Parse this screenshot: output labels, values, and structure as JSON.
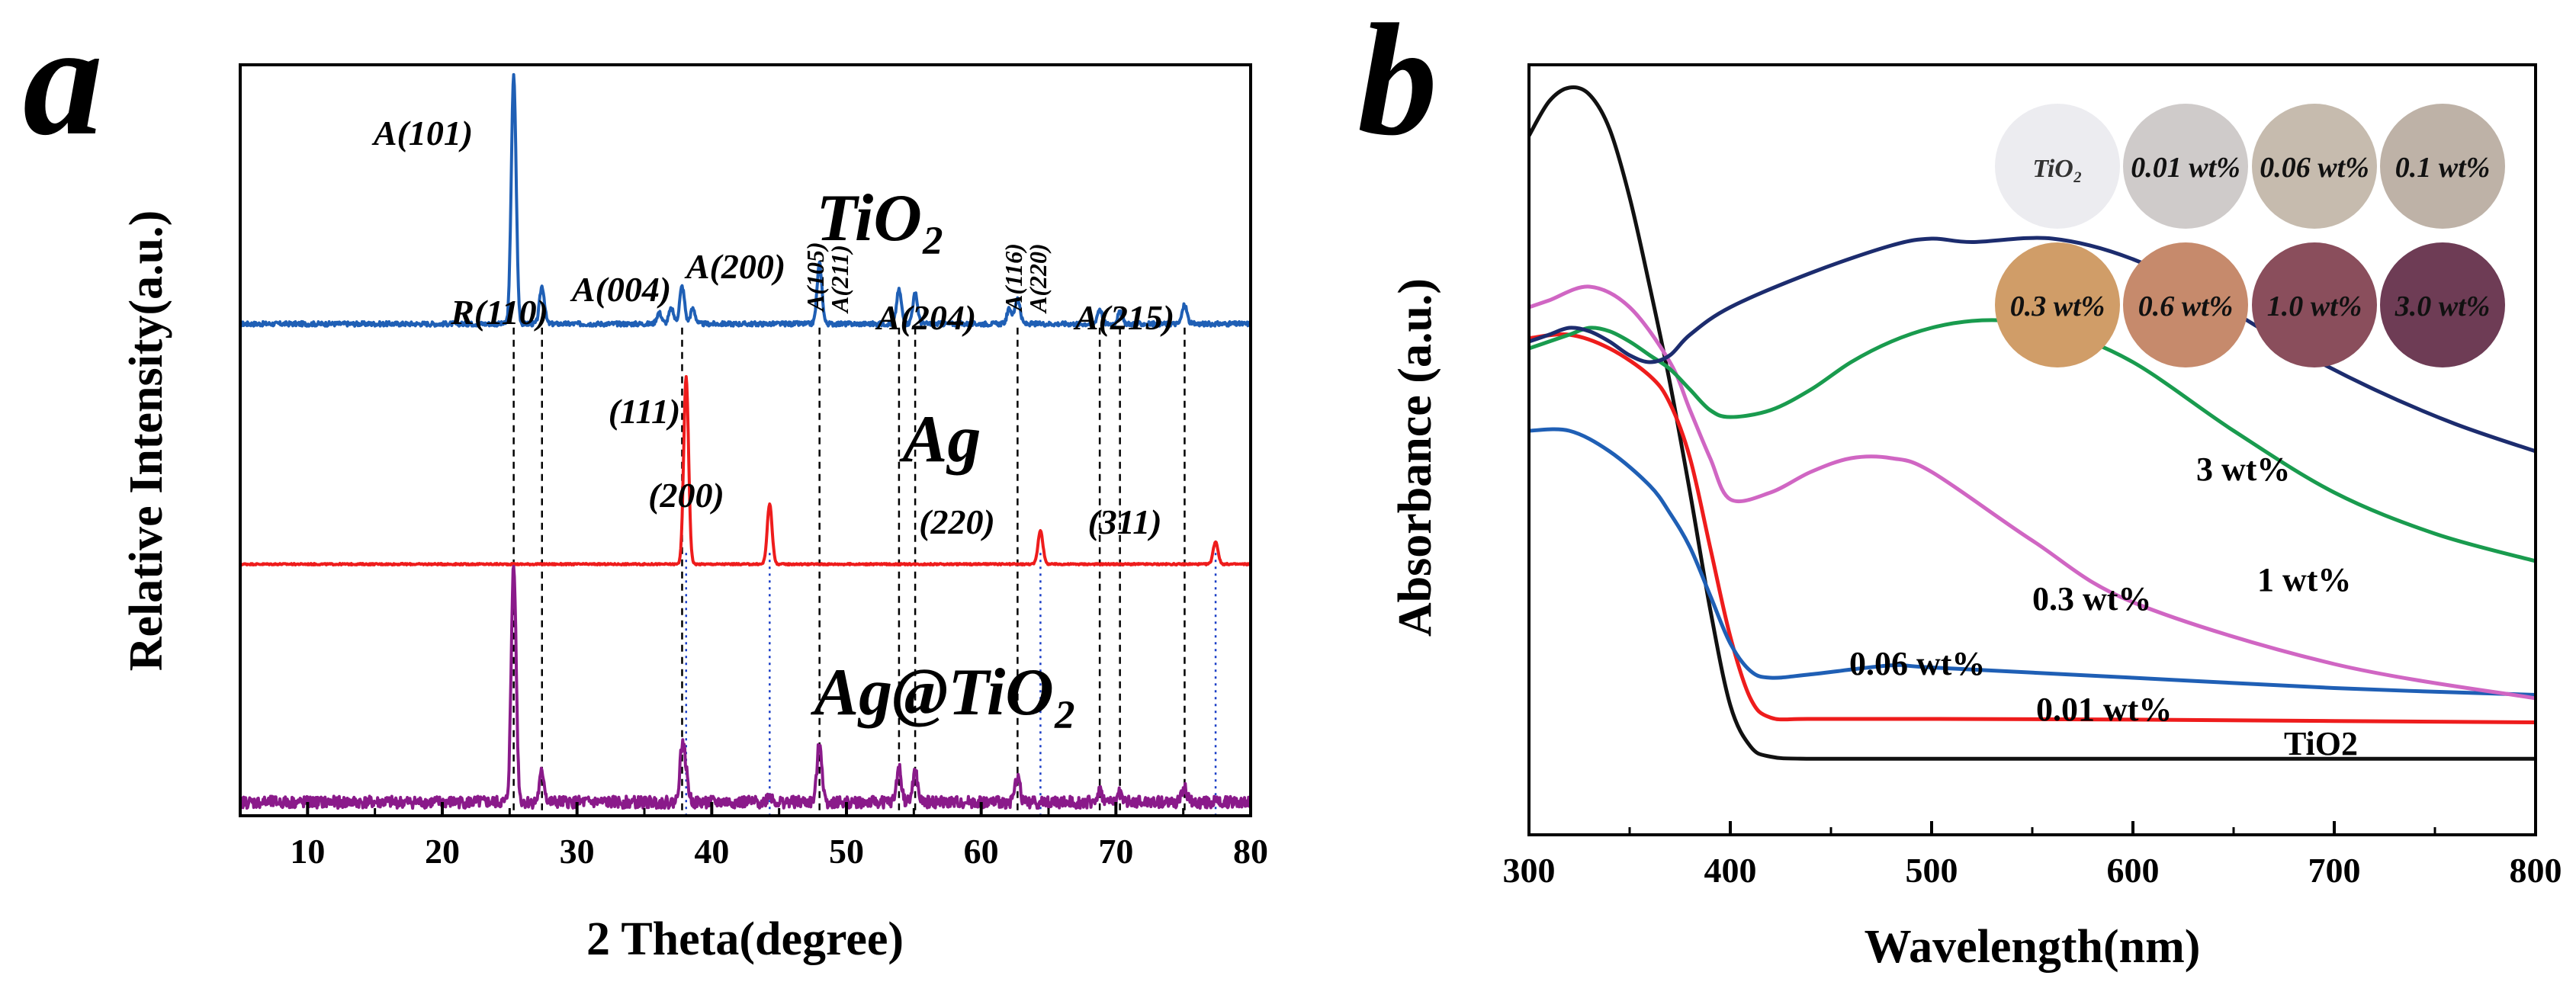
{
  "panels": [
    {
      "panel_label": "a",
      "chart_data": {
        "type": "line",
        "title": "",
        "xlabel": "2 Theta(degree)",
        "ylabel": "Relative Intensity(a.u.)",
        "xlim": [
          5,
          80
        ],
        "xticks": [
          10,
          20,
          30,
          40,
          50,
          60,
          70,
          80
        ],
        "ylim": [
          0,
          1
        ],
        "yticks_shown": false,
        "series": [
          {
            "name": "TiO2",
            "label": "TiO₂",
            "color": "#1f5fb5",
            "baseline": 0.655,
            "noise": 0.003,
            "peaks": [
              [
                25.3,
                0.33
              ],
              [
                27.4,
                0.05
              ],
              [
                36.1,
                0.015
              ],
              [
                37.0,
                0.02
              ],
              [
                37.8,
                0.05
              ],
              [
                38.6,
                0.02
              ],
              [
                48.0,
                0.08
              ],
              [
                53.9,
                0.045
              ],
              [
                55.1,
                0.04
              ],
              [
                62.1,
                0.02
              ],
              [
                62.7,
                0.035
              ],
              [
                68.8,
                0.02
              ],
              [
                70.3,
                0.015
              ],
              [
                75.1,
                0.025
              ]
            ]
          },
          {
            "name": "Ag",
            "label": "Ag",
            "color": "#ee1c1c",
            "baseline": 0.335,
            "noise": 0.001,
            "peaks": [
              [
                38.1,
                0.25
              ],
              [
                44.3,
                0.08
              ],
              [
                64.4,
                0.045
              ],
              [
                77.4,
                0.03
              ]
            ]
          },
          {
            "name": "Ag@TiO2",
            "label": "Ag@TiO₂",
            "color": "#8a1a8a",
            "baseline": 0.018,
            "noise": 0.008,
            "peaks": [
              [
                25.3,
                0.32
              ],
              [
                27.4,
                0.04
              ],
              [
                37.8,
                0.07
              ],
              [
                38.1,
                0.03
              ],
              [
                44.3,
                0.01
              ],
              [
                48.0,
                0.08
              ],
              [
                53.9,
                0.045
              ],
              [
                55.1,
                0.04
              ],
              [
                62.7,
                0.035
              ],
              [
                68.8,
                0.015
              ],
              [
                70.3,
                0.012
              ],
              [
                75.1,
                0.02
              ]
            ]
          }
        ],
        "annotations": [
          "A(101)",
          "R(110)",
          "A(004)",
          "A(200)",
          "A(105)",
          "A(211)",
          "A(204)",
          "A(116)",
          "A(220)",
          "A(215)",
          "(111)",
          "(200)",
          "(220)",
          "(311)"
        ],
        "black_dashed_lines_x": [
          25.3,
          27.4,
          37.8,
          48.0,
          53.9,
          55.1,
          62.7,
          68.8,
          70.3,
          75.1
        ],
        "blue_dotted_lines_x": [
          38.1,
          44.3,
          64.4,
          77.4
        ]
      }
    },
    {
      "panel_label": "b",
      "chart_data": {
        "type": "line",
        "title": "",
        "xlabel": "Wavelength(nm)",
        "ylabel": "Absorbance (a.u.)",
        "xlim": [
          300,
          800
        ],
        "xticks": [
          300,
          400,
          500,
          600,
          700,
          800
        ],
        "ylim": [
          0,
          1
        ],
        "yticks_shown": false,
        "series": [
          {
            "name": "TiO2",
            "color": "#111111",
            "x": [
              300,
              310,
              320,
              330,
              340,
              350,
              360,
              370,
              380,
              390,
              400,
              410,
              420,
              440,
              500,
              600,
              700,
              800
            ],
            "y": [
              0.93,
              0.98,
              1.0,
              0.99,
              0.94,
              0.84,
              0.71,
              0.57,
              0.41,
              0.24,
              0.1,
              0.04,
              0.025,
              0.022,
              0.022,
              0.022,
              0.022,
              0.022
            ]
          },
          {
            "name": "0.01 wt%",
            "color": "#ee1c1c",
            "x": [
              300,
              320,
              340,
              360,
              370,
              380,
              390,
              400,
              410,
              420,
              440,
              500,
              600,
              700,
              800
            ],
            "y": [
              0.635,
              0.64,
              0.62,
              0.58,
              0.54,
              0.46,
              0.33,
              0.2,
              0.11,
              0.082,
              0.08,
              0.08,
              0.079,
              0.077,
              0.075
            ]
          },
          {
            "name": "0.06 wt%",
            "color": "#1f5fb5",
            "x": [
              300,
              320,
              340,
              360,
              370,
              380,
              390,
              400,
              410,
              420,
              440,
              480,
              500,
              600,
              700,
              800
            ],
            "y": [
              0.5,
              0.5,
              0.47,
              0.42,
              0.38,
              0.33,
              0.26,
              0.19,
              0.15,
              0.14,
              0.145,
              0.158,
              0.155,
              0.14,
              0.125,
              0.115
            ]
          },
          {
            "name": "0.3 wt%",
            "color": "#d066c3",
            "x": [
              300,
              310,
              330,
              350,
              370,
              380,
              390,
              400,
              420,
              440,
              460,
              480,
              500,
              550,
              600,
              700,
              800
            ],
            "y": [
              0.68,
              0.69,
              0.71,
              0.68,
              0.6,
              0.53,
              0.46,
              0.4,
              0.41,
              0.44,
              0.46,
              0.46,
              0.44,
              0.34,
              0.25,
              0.16,
              0.11
            ]
          },
          {
            "name": "1 wt%",
            "color": "#199b4e",
            "x": [
              300,
              310,
              320,
              330,
              340,
              350,
              360,
              370,
              380,
              390,
              400,
              420,
              440,
              460,
              480,
              500,
              520,
              540,
              560,
              600,
              650,
              700,
              750,
              800
            ],
            "y": [
              0.62,
              0.63,
              0.64,
              0.65,
              0.645,
              0.63,
              0.61,
              0.59,
              0.56,
              0.53,
              0.52,
              0.53,
              0.56,
              0.6,
              0.63,
              0.65,
              0.66,
              0.66,
              0.65,
              0.6,
              0.5,
              0.41,
              0.35,
              0.31
            ]
          },
          {
            "name": "3 wt%",
            "color": "#1c2c6e",
            "x": [
              300,
              310,
              320,
              330,
              340,
              350,
              360,
              370,
              380,
              400,
              440,
              480,
              500,
              520,
              560,
              600,
              640,
              680,
              720,
              760,
              800
            ],
            "y": [
              0.63,
              0.64,
              0.65,
              0.645,
              0.63,
              0.61,
              0.6,
              0.61,
              0.64,
              0.68,
              0.73,
              0.77,
              0.78,
              0.775,
              0.78,
              0.75,
              0.69,
              0.62,
              0.56,
              0.51,
              0.47
            ]
          }
        ],
        "curve_labels": [
          "3 wt%",
          "1 wt%",
          "0.3 wt%",
          "0.06 wt%",
          "0.01 wt%",
          "TiO2"
        ]
      }
    }
  ],
  "inset": {
    "samples": [
      {
        "label": "TiO₂",
        "color": "#ececf0"
      },
      {
        "label": "0.01 wt%",
        "color": "#cfcbca"
      },
      {
        "label": "0.06 wt%",
        "color": "#c6bbae"
      },
      {
        "label": "0.1 wt%",
        "color": "#beb2a7"
      },
      {
        "label": "0.3 wt%",
        "color": "#d09d68"
      },
      {
        "label": "0.6 wt%",
        "color": "#c68a6c"
      },
      {
        "label": "1.0 wt%",
        "color": "#8a4e5c"
      },
      {
        "label": "3.0 wt%",
        "color": "#6e3c55"
      }
    ]
  }
}
